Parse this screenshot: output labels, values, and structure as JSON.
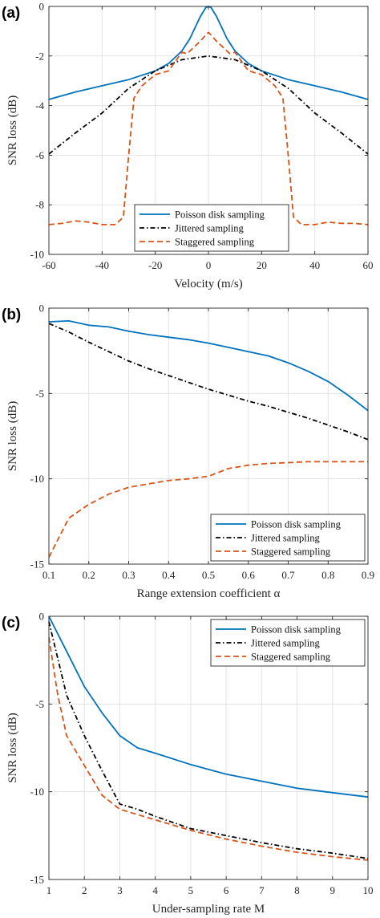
{
  "chart_data": [
    {
      "type": "line",
      "panel_label": "(a)",
      "xlabel": "Velocity (m/s)",
      "ylabel": "SNR loss (dB)",
      "xlim": [
        -60,
        60
      ],
      "ylim": [
        -10,
        0
      ],
      "xticks": [
        -60,
        -40,
        -20,
        0,
        20,
        40,
        60
      ],
      "yticks": [
        0,
        -2,
        -4,
        -6,
        -8,
        -10
      ],
      "grid": true,
      "legend_position": "bottom-center",
      "series": [
        {
          "name": "Poisson disk sampling",
          "color": "#0072BD",
          "dash": "solid",
          "x": [
            -60,
            -50,
            -40,
            -30,
            -20,
            -15,
            -10,
            -7,
            -5,
            -3,
            -1,
            0,
            1,
            3,
            5,
            7,
            10,
            15,
            20,
            30,
            40,
            50,
            60
          ],
          "y": [
            -3.75,
            -3.45,
            -3.2,
            -2.95,
            -2.6,
            -2.3,
            -1.8,
            -1.3,
            -0.85,
            -0.4,
            -0.05,
            0,
            -0.05,
            -0.4,
            -0.85,
            -1.3,
            -1.8,
            -2.3,
            -2.6,
            -2.95,
            -3.2,
            -3.45,
            -3.75
          ]
        },
        {
          "name": "Jittered sampling",
          "color": "#000000",
          "dash": "dashdot",
          "x": [
            -60,
            -50,
            -40,
            -30,
            -20,
            -10,
            0,
            10,
            20,
            30,
            40,
            50,
            60
          ],
          "y": [
            -5.95,
            -5.1,
            -4.3,
            -3.3,
            -2.6,
            -2.15,
            -2.0,
            -2.15,
            -2.6,
            -3.3,
            -4.3,
            -5.1,
            -5.95
          ]
        },
        {
          "name": "Staggered sampling",
          "color": "#D95319",
          "dash": "dashed",
          "x": [
            -60,
            -55,
            -50,
            -45,
            -40,
            -35,
            -32,
            -30,
            -28,
            -25,
            -20,
            -15,
            -10,
            -8,
            -5,
            -3,
            -1,
            0,
            1,
            3,
            5,
            8,
            10,
            15,
            20,
            25,
            28,
            30,
            32,
            35,
            40,
            45,
            50,
            55,
            60
          ],
          "y": [
            -8.8,
            -8.75,
            -8.65,
            -8.7,
            -8.8,
            -8.8,
            -8.5,
            -6.0,
            -3.7,
            -3.2,
            -2.75,
            -2.6,
            -1.85,
            -1.9,
            -1.6,
            -1.4,
            -1.15,
            -1.05,
            -1.15,
            -1.4,
            -1.6,
            -1.9,
            -1.85,
            -2.6,
            -2.75,
            -3.2,
            -3.7,
            -6.0,
            -8.5,
            -8.8,
            -8.8,
            -8.7,
            -8.75,
            -8.75,
            -8.8
          ]
        }
      ]
    },
    {
      "type": "line",
      "panel_label": "(b)",
      "xlabel": "Range extension coefficient α",
      "ylabel": "SNR loss (dB)",
      "xlim": [
        0.1,
        0.9
      ],
      "ylim": [
        -15,
        0
      ],
      "xticks": [
        0.1,
        0.2,
        0.3,
        0.4,
        0.5,
        0.6,
        0.7,
        0.8,
        0.9
      ],
      "yticks": [
        0,
        -5,
        -10,
        -15
      ],
      "grid": true,
      "legend_position": "bottom-right",
      "series": [
        {
          "name": "Poisson disk sampling",
          "color": "#0072BD",
          "dash": "solid",
          "x": [
            0.1,
            0.15,
            0.2,
            0.25,
            0.3,
            0.35,
            0.4,
            0.45,
            0.5,
            0.55,
            0.6,
            0.65,
            0.7,
            0.75,
            0.8,
            0.85,
            0.9
          ],
          "y": [
            -0.8,
            -0.75,
            -1.0,
            -1.1,
            -1.35,
            -1.55,
            -1.7,
            -1.85,
            -2.05,
            -2.3,
            -2.55,
            -2.8,
            -3.2,
            -3.7,
            -4.3,
            -5.1,
            -6.0
          ]
        },
        {
          "name": "Jittered sampling",
          "color": "#000000",
          "dash": "dashdot",
          "x": [
            0.1,
            0.15,
            0.2,
            0.25,
            0.3,
            0.35,
            0.4,
            0.45,
            0.5,
            0.55,
            0.6,
            0.65,
            0.7,
            0.75,
            0.8,
            0.85,
            0.9
          ],
          "y": [
            -0.9,
            -1.4,
            -2.0,
            -2.55,
            -3.1,
            -3.55,
            -3.95,
            -4.35,
            -4.75,
            -5.1,
            -5.45,
            -5.75,
            -6.1,
            -6.45,
            -6.85,
            -7.25,
            -7.7
          ]
        },
        {
          "name": "Staggered sampling",
          "color": "#D95319",
          "dash": "dashed",
          "x": [
            0.1,
            0.15,
            0.2,
            0.25,
            0.3,
            0.35,
            0.4,
            0.45,
            0.5,
            0.55,
            0.6,
            0.65,
            0.7,
            0.75,
            0.8,
            0.85,
            0.9
          ],
          "y": [
            -14.6,
            -12.3,
            -11.5,
            -10.9,
            -10.5,
            -10.3,
            -10.1,
            -10.0,
            -9.85,
            -9.4,
            -9.2,
            -9.1,
            -9.05,
            -9.0,
            -9.0,
            -9.0,
            -9.0
          ]
        }
      ]
    },
    {
      "type": "line",
      "panel_label": "(c)",
      "xlabel": "Under-sampling rate M",
      "ylabel": "SNR loss (dB)",
      "xlim": [
        1,
        10
      ],
      "ylim": [
        -15,
        0
      ],
      "xticks": [
        1,
        2,
        3,
        4,
        5,
        6,
        7,
        8,
        9,
        10
      ],
      "yticks": [
        0,
        -5,
        -10,
        -15
      ],
      "grid": true,
      "legend_position": "top-right",
      "series": [
        {
          "name": "Poisson disk sampling",
          "color": "#0072BD",
          "dash": "solid",
          "x": [
            1,
            1.5,
            2,
            2.5,
            3,
            3.5,
            4,
            5,
            6,
            7,
            8,
            9,
            10
          ],
          "y": [
            0,
            -2.0,
            -4.0,
            -5.5,
            -6.8,
            -7.5,
            -7.8,
            -8.45,
            -9.0,
            -9.4,
            -9.8,
            -10.05,
            -10.3
          ]
        },
        {
          "name": "Jittered sampling",
          "color": "#000000",
          "dash": "dashdot",
          "x": [
            1,
            1.5,
            2,
            2.5,
            3,
            3.5,
            4,
            5,
            6,
            7,
            8,
            9,
            10
          ],
          "y": [
            -0.3,
            -4.5,
            -6.8,
            -8.8,
            -10.7,
            -11.0,
            -11.4,
            -12.1,
            -12.5,
            -12.9,
            -13.25,
            -13.5,
            -13.8
          ]
        },
        {
          "name": "Staggered sampling",
          "color": "#D95319",
          "dash": "dashed",
          "x": [
            1,
            1.25,
            1.5,
            2,
            2.5,
            3,
            3.5,
            4,
            5,
            6,
            7,
            8,
            9,
            10
          ],
          "y": [
            -1.2,
            -4.5,
            -6.8,
            -8.5,
            -10.2,
            -11.0,
            -11.3,
            -11.6,
            -12.2,
            -12.7,
            -13.1,
            -13.45,
            -13.7,
            -13.9
          ]
        }
      ]
    }
  ]
}
